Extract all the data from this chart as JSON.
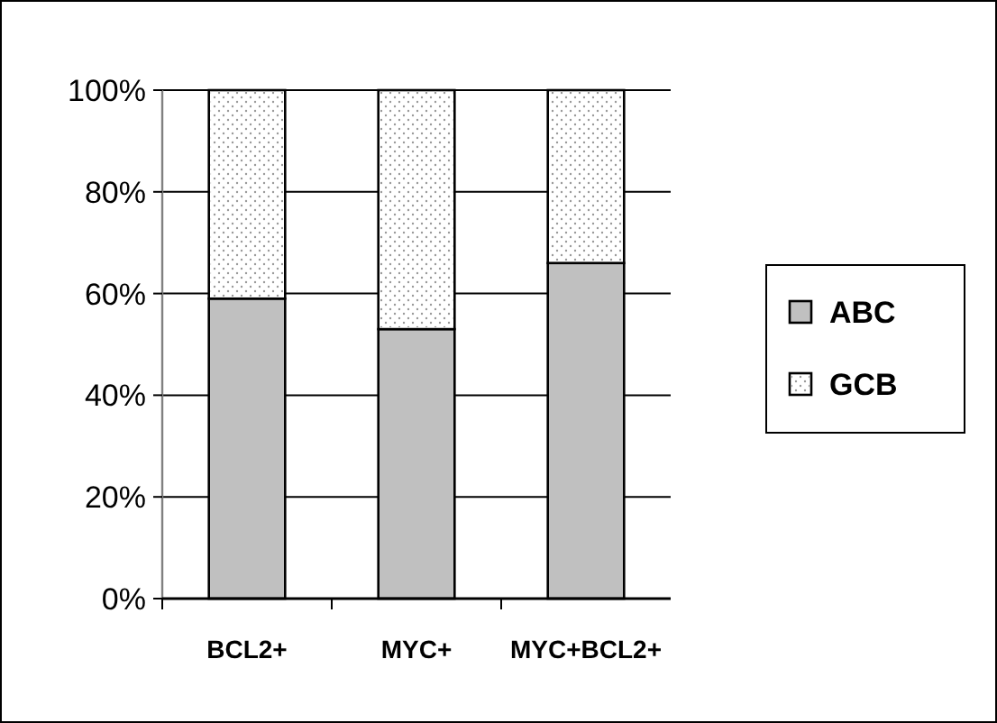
{
  "chart_data": {
    "type": "bar",
    "stacked": true,
    "categories": [
      "BCL2+",
      "MYC+",
      "MYC+BCL2+"
    ],
    "series": [
      {
        "name": "ABC",
        "color": "#c0c0c0",
        "values": [
          59,
          53,
          66
        ]
      },
      {
        "name": "GCB",
        "color": "#ffffff",
        "values": [
          41,
          47,
          34
        ]
      }
    ],
    "ylim": [
      0,
      100
    ],
    "yticks": [
      {
        "value": 0,
        "label": "0%"
      },
      {
        "value": 20,
        "label": "20%"
      },
      {
        "value": 40,
        "label": "40%"
      },
      {
        "value": 60,
        "label": "60%"
      },
      {
        "value": 80,
        "label": "80%"
      },
      {
        "value": 100,
        "label": "100%"
      }
    ],
    "grid": "y",
    "legend": "right"
  }
}
